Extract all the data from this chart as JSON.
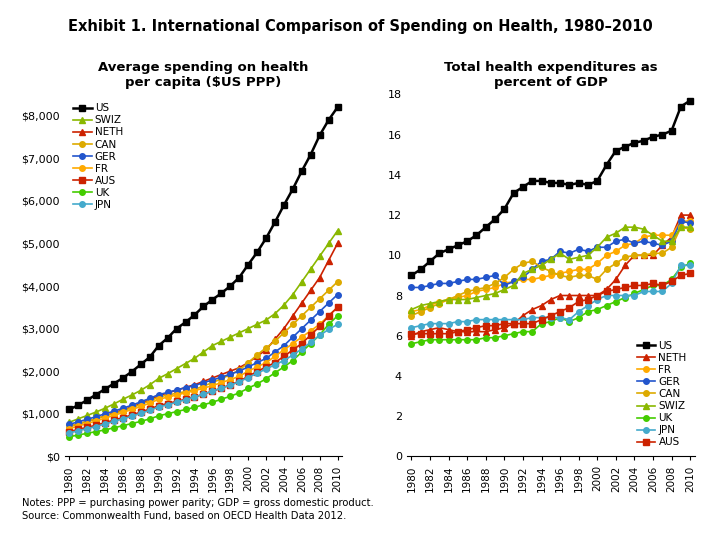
{
  "title": "Exhibit 1. International Comparison of Spending on Health, 1980–2010",
  "left_title": "Average spending on health\nper capita ($US PPP)",
  "right_title": "Total health expenditures as\npercent of GDP",
  "note_line1": "Notes: PPP = purchasing power parity; GDP = gross domestic product.",
  "note_line2": "Source: Commonwealth Fund, based on OECD Health Data 2012.",
  "years": [
    1980,
    1981,
    1982,
    1983,
    1984,
    1985,
    1986,
    1987,
    1988,
    1989,
    1990,
    1991,
    1992,
    1993,
    1994,
    1995,
    1996,
    1997,
    1998,
    1999,
    2000,
    2001,
    2002,
    2003,
    2004,
    2005,
    2006,
    2007,
    2008,
    2009,
    2010
  ],
  "left_data": {
    "US": [
      1100,
      1200,
      1320,
      1450,
      1580,
      1710,
      1840,
      1990,
      2160,
      2330,
      2600,
      2780,
      3000,
      3150,
      3320,
      3520,
      3680,
      3830,
      4000,
      4200,
      4500,
      4790,
      5120,
      5500,
      5900,
      6280,
      6700,
      7090,
      7540,
      7900,
      8200
    ],
    "SWIZ": [
      800,
      880,
      960,
      1040,
      1130,
      1230,
      1340,
      1440,
      1550,
      1680,
      1830,
      1940,
      2060,
      2180,
      2300,
      2450,
      2600,
      2700,
      2800,
      2900,
      3000,
      3100,
      3200,
      3350,
      3550,
      3800,
      4100,
      4400,
      4700,
      5000,
      5300
    ],
    "NETH": [
      700,
      760,
      820,
      880,
      950,
      1020,
      1090,
      1160,
      1240,
      1330,
      1420,
      1490,
      1550,
      1620,
      1680,
      1760,
      1840,
      1920,
      2000,
      2080,
      2200,
      2350,
      2500,
      2750,
      3000,
      3300,
      3600,
      3900,
      4200,
      4600,
      5000
    ],
    "CAN": [
      700,
      760,
      820,
      880,
      950,
      1000,
      1070,
      1140,
      1220,
      1300,
      1390,
      1440,
      1480,
      1520,
      1570,
      1650,
      1730,
      1820,
      1920,
      2020,
      2200,
      2380,
      2550,
      2700,
      2900,
      3100,
      3300,
      3500,
      3700,
      3900,
      4100
    ],
    "GER": [
      750,
      810,
      870,
      930,
      1000,
      1060,
      1130,
      1200,
      1280,
      1360,
      1450,
      1500,
      1560,
      1610,
      1660,
      1730,
      1790,
      1860,
      1930,
      2000,
      2100,
      2200,
      2300,
      2450,
      2600,
      2800,
      3000,
      3200,
      3400,
      3600,
      3800
    ],
    "FR": [
      650,
      710,
      770,
      830,
      900,
      960,
      1030,
      1100,
      1170,
      1250,
      1340,
      1390,
      1440,
      1490,
      1540,
      1600,
      1660,
      1730,
      1800,
      1880,
      2000,
      2100,
      2200,
      2350,
      2500,
      2650,
      2800,
      2950,
      3100,
      3300,
      3500
    ],
    "AUS": [
      580,
      630,
      680,
      730,
      790,
      850,
      910,
      970,
      1040,
      1110,
      1190,
      1240,
      1290,
      1340,
      1390,
      1460,
      1530,
      1600,
      1680,
      1760,
      1880,
      1990,
      2100,
      2200,
      2350,
      2500,
      2650,
      2850,
      3050,
      3300,
      3500
    ],
    "UK": [
      460,
      500,
      540,
      580,
      620,
      670,
      720,
      770,
      820,
      880,
      950,
      1000,
      1050,
      1100,
      1150,
      1210,
      1270,
      1340,
      1410,
      1490,
      1600,
      1700,
      1820,
      1960,
      2100,
      2250,
      2450,
      2650,
      2850,
      3100,
      3300
    ],
    "JPN": [
      550,
      600,
      650,
      700,
      760,
      820,
      880,
      940,
      1010,
      1080,
      1160,
      1210,
      1270,
      1330,
      1390,
      1460,
      1530,
      1600,
      1670,
      1750,
      1850,
      1950,
      2050,
      2150,
      2250,
      2380,
      2520,
      2680,
      2840,
      2980,
      3100
    ]
  },
  "right_data": {
    "US": [
      9.0,
      9.3,
      9.7,
      10.1,
      10.3,
      10.5,
      10.7,
      11.0,
      11.4,
      11.8,
      12.3,
      13.1,
      13.4,
      13.7,
      13.7,
      13.6,
      13.6,
      13.5,
      13.6,
      13.5,
      13.7,
      14.5,
      15.2,
      15.4,
      15.6,
      15.7,
      15.9,
      16.0,
      16.2,
      17.4,
      17.7
    ],
    "NETH": [
      6.0,
      6.2,
      6.3,
      6.4,
      6.3,
      6.2,
      6.2,
      6.2,
      6.2,
      6.3,
      6.4,
      6.6,
      7.0,
      7.3,
      7.5,
      7.8,
      8.0,
      8.0,
      8.0,
      8.0,
      8.0,
      8.3,
      8.8,
      9.5,
      10.0,
      10.0,
      10.0,
      10.5,
      10.9,
      12.0,
      12.0
    ],
    "FR": [
      7.2,
      7.3,
      7.5,
      7.7,
      7.8,
      7.9,
      8.0,
      8.2,
      8.3,
      8.4,
      8.6,
      8.7,
      8.8,
      8.8,
      8.9,
      9.0,
      9.1,
      9.2,
      9.3,
      9.3,
      9.6,
      10.0,
      10.2,
      10.5,
      10.6,
      10.9,
      11.0,
      11.0,
      11.0,
      11.7,
      11.7
    ],
    "GER": [
      8.4,
      8.4,
      8.5,
      8.6,
      8.6,
      8.7,
      8.8,
      8.8,
      8.9,
      9.0,
      8.5,
      8.7,
      8.9,
      9.3,
      9.7,
      9.8,
      10.2,
      10.1,
      10.3,
      10.2,
      10.4,
      10.4,
      10.7,
      10.8,
      10.6,
      10.7,
      10.6,
      10.5,
      10.7,
      11.7,
      11.6
    ],
    "CAN": [
      7.0,
      7.2,
      7.4,
      7.6,
      7.8,
      8.0,
      8.2,
      8.3,
      8.4,
      8.6,
      8.9,
      9.3,
      9.6,
      9.7,
      9.4,
      9.2,
      9.0,
      8.9,
      9.0,
      9.0,
      8.8,
      9.3,
      9.6,
      9.9,
      10.0,
      10.0,
      10.1,
      10.1,
      10.4,
      11.4,
      11.3
    ],
    "SWIZ": [
      7.3,
      7.5,
      7.6,
      7.7,
      7.8,
      7.8,
      7.8,
      7.9,
      8.0,
      8.1,
      8.3,
      8.5,
      9.1,
      9.3,
      9.5,
      9.8,
      10.1,
      9.8,
      9.9,
      10.0,
      10.4,
      10.9,
      11.1,
      11.4,
      11.4,
      11.3,
      11.0,
      10.7,
      10.7,
      11.4,
      11.4
    ],
    "UK": [
      5.6,
      5.7,
      5.8,
      5.8,
      5.8,
      5.8,
      5.8,
      5.8,
      5.9,
      5.9,
      6.0,
      6.1,
      6.2,
      6.2,
      6.6,
      6.7,
      6.9,
      6.7,
      6.9,
      7.2,
      7.3,
      7.5,
      7.7,
      7.9,
      8.1,
      8.3,
      8.5,
      8.5,
      8.8,
      9.4,
      9.6
    ],
    "JPN": [
      6.4,
      6.5,
      6.6,
      6.6,
      6.6,
      6.7,
      6.7,
      6.8,
      6.8,
      6.8,
      6.8,
      6.8,
      6.8,
      6.9,
      6.9,
      6.9,
      6.9,
      6.8,
      7.2,
      7.5,
      7.8,
      8.0,
      8.0,
      8.0,
      8.0,
      8.2,
      8.2,
      8.2,
      8.6,
      9.5,
      9.5
    ],
    "AUS": [
      6.1,
      6.1,
      6.1,
      6.1,
      6.1,
      6.2,
      6.3,
      6.4,
      6.5,
      6.5,
      6.6,
      6.6,
      6.6,
      6.6,
      6.8,
      7.0,
      7.2,
      7.4,
      7.7,
      7.8,
      8.0,
      8.2,
      8.3,
      8.4,
      8.5,
      8.5,
      8.6,
      8.5,
      8.7,
      9.0,
      9.1
    ]
  },
  "left_series": [
    {
      "name": "US",
      "color": "#000000",
      "marker": "s",
      "lw": 1.8,
      "ms": 4
    },
    {
      "name": "SWIZ",
      "color": "#8ab800",
      "marker": "^",
      "lw": 1.2,
      "ms": 4
    },
    {
      "name": "NETH",
      "color": "#cc2200",
      "marker": "^",
      "lw": 1.2,
      "ms": 4
    },
    {
      "name": "CAN",
      "color": "#ddaa00",
      "marker": "o",
      "lw": 1.2,
      "ms": 4
    },
    {
      "name": "GER",
      "color": "#2255cc",
      "marker": "o",
      "lw": 1.2,
      "ms": 4
    },
    {
      "name": "FR",
      "color": "#ffaa00",
      "marker": "o",
      "lw": 1.2,
      "ms": 4
    },
    {
      "name": "AUS",
      "color": "#cc2200",
      "marker": "s",
      "lw": 1.2,
      "ms": 4
    },
    {
      "name": "UK",
      "color": "#44cc00",
      "marker": "o",
      "lw": 1.2,
      "ms": 4
    },
    {
      "name": "JPN",
      "color": "#44aacc",
      "marker": "o",
      "lw": 1.2,
      "ms": 4
    }
  ],
  "right_series": [
    {
      "name": "US",
      "color": "#000000",
      "marker": "s",
      "lw": 1.8,
      "ms": 4
    },
    {
      "name": "NETH",
      "color": "#cc2200",
      "marker": "^",
      "lw": 1.2,
      "ms": 4
    },
    {
      "name": "FR",
      "color": "#ffaa00",
      "marker": "o",
      "lw": 1.2,
      "ms": 4
    },
    {
      "name": "GER",
      "color": "#2255cc",
      "marker": "o",
      "lw": 1.2,
      "ms": 4
    },
    {
      "name": "CAN",
      "color": "#ddaa00",
      "marker": "o",
      "lw": 1.2,
      "ms": 4
    },
    {
      "name": "SWIZ",
      "color": "#8ab800",
      "marker": "^",
      "lw": 1.2,
      "ms": 4
    },
    {
      "name": "UK",
      "color": "#44cc00",
      "marker": "o",
      "lw": 1.2,
      "ms": 4
    },
    {
      "name": "JPN",
      "color": "#44aacc",
      "marker": "o",
      "lw": 1.2,
      "ms": 4
    },
    {
      "name": "AUS",
      "color": "#cc2200",
      "marker": "s",
      "lw": 1.2,
      "ms": 4
    }
  ]
}
